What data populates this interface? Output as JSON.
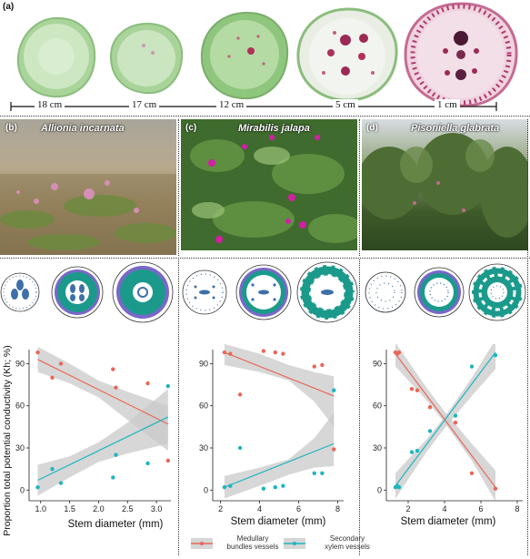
{
  "panel_a": {
    "label": "(a)",
    "scale_labels": [
      "18 cm",
      "17 cm",
      "12 cm",
      "5 cm",
      "1 cm"
    ]
  },
  "panel_b": {
    "label": "(b)",
    "species": "Allionia incarnata"
  },
  "panel_c": {
    "label": "(c)",
    "species": "Mirabilis jalapa"
  },
  "panel_d": {
    "label": "(d)",
    "species": "Pisoniella glabrata"
  },
  "colors": {
    "medullary": "#e8675a",
    "secondary": "#1fb5bd",
    "ribbon": "#c9c9c9",
    "stem_green": "#b9dba8",
    "anatomy_teal": "#1b9a8c",
    "anatomy_purple": "#7a67c8",
    "anatomy_blue": "#3e6fa8"
  },
  "y_axis_label": "Proportion total potential conductivity (Kh; %)",
  "legend": {
    "medullary": "Medullary\nbundles vessels",
    "secondary": "Secondary\nxylem vessels"
  },
  "chart_data": [
    {
      "type": "scatter",
      "xlabel": "Stem diameter (mm)",
      "ylabel": "Proportion total potential conductivity (Kh; %)",
      "xlim": [
        0.8,
        3.25
      ],
      "ylim": [
        -5,
        100
      ],
      "xticks": [
        "1.0",
        "1.5",
        "2.0",
        "2.5",
        "3.0"
      ],
      "xtick_values": [
        1.0,
        1.5,
        2.0,
        2.5,
        3.0
      ],
      "yticks": [
        "0",
        "30",
        "60",
        "90"
      ],
      "ytick_values": [
        0,
        30,
        60,
        90
      ],
      "series": [
        {
          "key": "medullary",
          "points": [
            [
              0.95,
              98
            ],
            [
              1.2,
              80
            ],
            [
              1.35,
              90
            ],
            [
              2.25,
              86
            ],
            [
              2.3,
              73
            ],
            [
              2.85,
              76
            ],
            [
              3.2,
              21
            ]
          ],
          "fit": [
            [
              0.95,
              93
            ],
            [
              3.2,
              47
            ]
          ],
          "ci": [
            [
              0.95,
              102,
              84
            ],
            [
              1.5,
              90,
              76
            ],
            [
              2.0,
              78,
              66
            ],
            [
              2.5,
              70,
              50
            ],
            [
              3.2,
              60,
              28
            ]
          ]
        },
        {
          "key": "secondary",
          "points": [
            [
              0.95,
              2
            ],
            [
              1.2,
              15
            ],
            [
              1.35,
              5
            ],
            [
              2.25,
              9
            ],
            [
              2.3,
              25
            ],
            [
              2.85,
              19
            ],
            [
              3.2,
              74
            ]
          ],
          "fit": [
            [
              0.95,
              7
            ],
            [
              3.2,
              52
            ]
          ],
          "ci": [
            [
              0.95,
              18,
              -4
            ],
            [
              1.5,
              24,
              9
            ],
            [
              2.0,
              34,
              20
            ],
            [
              2.5,
              48,
              26
            ],
            [
              3.2,
              72,
              33
            ]
          ]
        }
      ]
    },
    {
      "type": "scatter",
      "xlabel": "Stem diameter (mm)",
      "xlim": [
        1.6,
        8.3
      ],
      "ylim": [
        -5,
        100
      ],
      "xticks": [
        "2",
        "4",
        "6",
        "8"
      ],
      "xtick_values": [
        2,
        4,
        6,
        8
      ],
      "yticks": [
        "0",
        "30",
        "60",
        "90"
      ],
      "ytick_values": [
        0,
        30,
        60,
        90
      ],
      "series": [
        {
          "key": "medullary",
          "points": [
            [
              2.2,
              98
            ],
            [
              2.5,
              97
            ],
            [
              3.0,
              68
            ],
            [
              4.2,
              99
            ],
            [
              4.8,
              98
            ],
            [
              5.2,
              97
            ],
            [
              6.8,
              88
            ],
            [
              7.2,
              89
            ],
            [
              7.8,
              29
            ]
          ],
          "fit": [
            [
              2.2,
              98
            ],
            [
              7.8,
              67
            ]
          ],
          "ci": [
            [
              2.2,
              104,
              89
            ],
            [
              4.0,
              97,
              84
            ],
            [
              5.5,
              89,
              78
            ],
            [
              6.8,
              84,
              63
            ],
            [
              7.8,
              81,
              45
            ]
          ]
        },
        {
          "key": "secondary",
          "points": [
            [
              2.2,
              2
            ],
            [
              2.5,
              3
            ],
            [
              3.0,
              30
            ],
            [
              4.2,
              1
            ],
            [
              4.8,
              2
            ],
            [
              5.2,
              3
            ],
            [
              6.8,
              12
            ],
            [
              7.2,
              12
            ],
            [
              7.8,
              71
            ]
          ],
          "fit": [
            [
              2.2,
              2
            ],
            [
              7.8,
              33
            ]
          ],
          "ci": [
            [
              2.2,
              10,
              -6
            ],
            [
              4.0,
              16,
              3
            ],
            [
              5.5,
              22,
              11
            ],
            [
              6.8,
              37,
              16
            ],
            [
              7.8,
              55,
              17
            ]
          ]
        }
      ]
    },
    {
      "type": "scatter",
      "xlabel": "Stem diameter (mm)",
      "xlim": [
        0.8,
        8.3
      ],
      "ylim": [
        -5,
        100
      ],
      "xticks": [
        "2",
        "4",
        "6",
        "8"
      ],
      "xtick_values": [
        2,
        4,
        6,
        8
      ],
      "yticks": [
        "0",
        "30",
        "60",
        "90"
      ],
      "ytick_values": [
        0,
        30,
        60,
        90
      ],
      "series": [
        {
          "key": "medullary",
          "points": [
            [
              1.3,
              98
            ],
            [
              1.4,
              97
            ],
            [
              1.5,
              98
            ],
            [
              2.2,
              72
            ],
            [
              2.5,
              71
            ],
            [
              3.2,
              59
            ],
            [
              4.6,
              48
            ],
            [
              5.5,
              12
            ],
            [
              6.8,
              1
            ]
          ],
          "fit": [
            [
              1.3,
              97
            ],
            [
              6.8,
              2
            ]
          ],
          "ci": [
            [
              1.3,
              105,
              88
            ],
            [
              3.0,
              73,
              64
            ],
            [
              4.0,
              56,
              48
            ],
            [
              5.5,
              33,
              21
            ],
            [
              6.8,
              14,
              -8
            ]
          ]
        },
        {
          "key": "secondary",
          "points": [
            [
              1.3,
              2
            ],
            [
              1.4,
              3
            ],
            [
              1.5,
              2
            ],
            [
              2.2,
              27
            ],
            [
              2.5,
              28
            ],
            [
              3.2,
              42
            ],
            [
              4.6,
              53
            ],
            [
              5.5,
              88
            ],
            [
              6.8,
              96
            ]
          ],
          "fit": [
            [
              1.3,
              3
            ],
            [
              6.8,
              98
            ]
          ],
          "ci": [
            [
              1.3,
              12,
              -6
            ],
            [
              3.0,
              36,
              27
            ],
            [
              4.0,
              52,
              44
            ],
            [
              5.5,
              80,
              67
            ],
            [
              6.8,
              107,
              86
            ]
          ]
        }
      ]
    }
  ]
}
